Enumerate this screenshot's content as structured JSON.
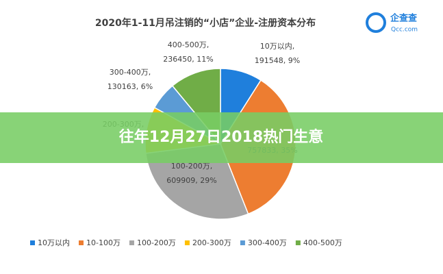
{
  "chart_data": {
    "type": "pie",
    "title": "2020年1-11月吊注销的“小店”企业-注册资本分布",
    "categories": [
      "10万以内",
      "10-100万",
      "100-200万",
      "200-300万",
      "300-400万",
      "400-500万"
    ],
    "values": [
      9,
      35,
      29,
      10,
      6,
      11
    ],
    "colors": [
      "#1f7fdc",
      "#ed7d31",
      "#a5a5a5",
      "#ffc000",
      "#5b9bd5",
      "#70ad47"
    ],
    "slice_labels": [
      [
        "10万以内,",
        "191548, 9%"
      ],
      [
        "757833, 35%"
      ],
      [
        "100-200万,",
        "609909, 29%"
      ],
      [
        "200-300万,"
      ],
      [
        "300-400万,",
        "130163, 6%"
      ],
      [
        "400-500万,",
        "236450, 11%"
      ]
    ],
    "legend": "bottom"
  },
  "logo": {
    "name": "企查查",
    "url": "Qcc.com"
  },
  "banner": "往年12月27日2018热门生意"
}
